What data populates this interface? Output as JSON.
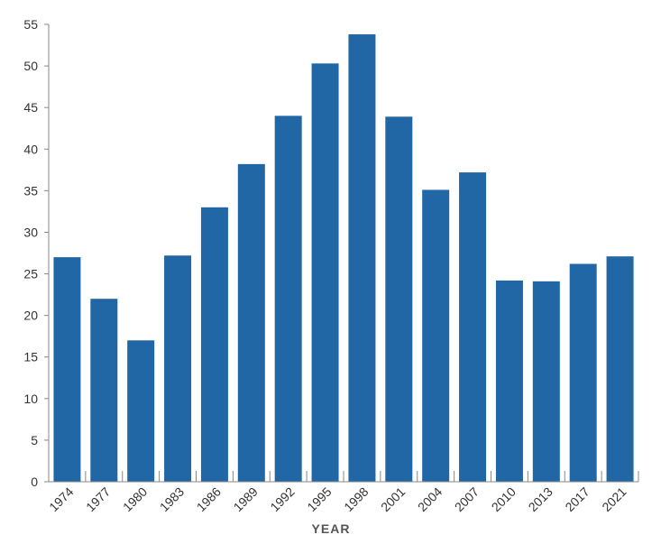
{
  "chart_data": {
    "type": "bar",
    "title": "",
    "xlabel": "YEAR",
    "ylabel": "",
    "ylim": [
      0,
      55
    ],
    "yticks": [
      0,
      5,
      10,
      15,
      20,
      25,
      30,
      35,
      40,
      45,
      50,
      55
    ],
    "grid": false,
    "categories": [
      "1974",
      "1977",
      "1980",
      "1983",
      "1986",
      "1989",
      "1992",
      "1995",
      "1998",
      "2001",
      "2004",
      "2007",
      "2010",
      "2013",
      "2017",
      "2021"
    ],
    "values": [
      27,
      22,
      17,
      27.2,
      33,
      38.2,
      44,
      50.3,
      53.8,
      43.9,
      35.1,
      37.2,
      24.2,
      24.1,
      26.2,
      27.1
    ],
    "bar_color": "#2166a5",
    "axis_color": "#888888"
  }
}
